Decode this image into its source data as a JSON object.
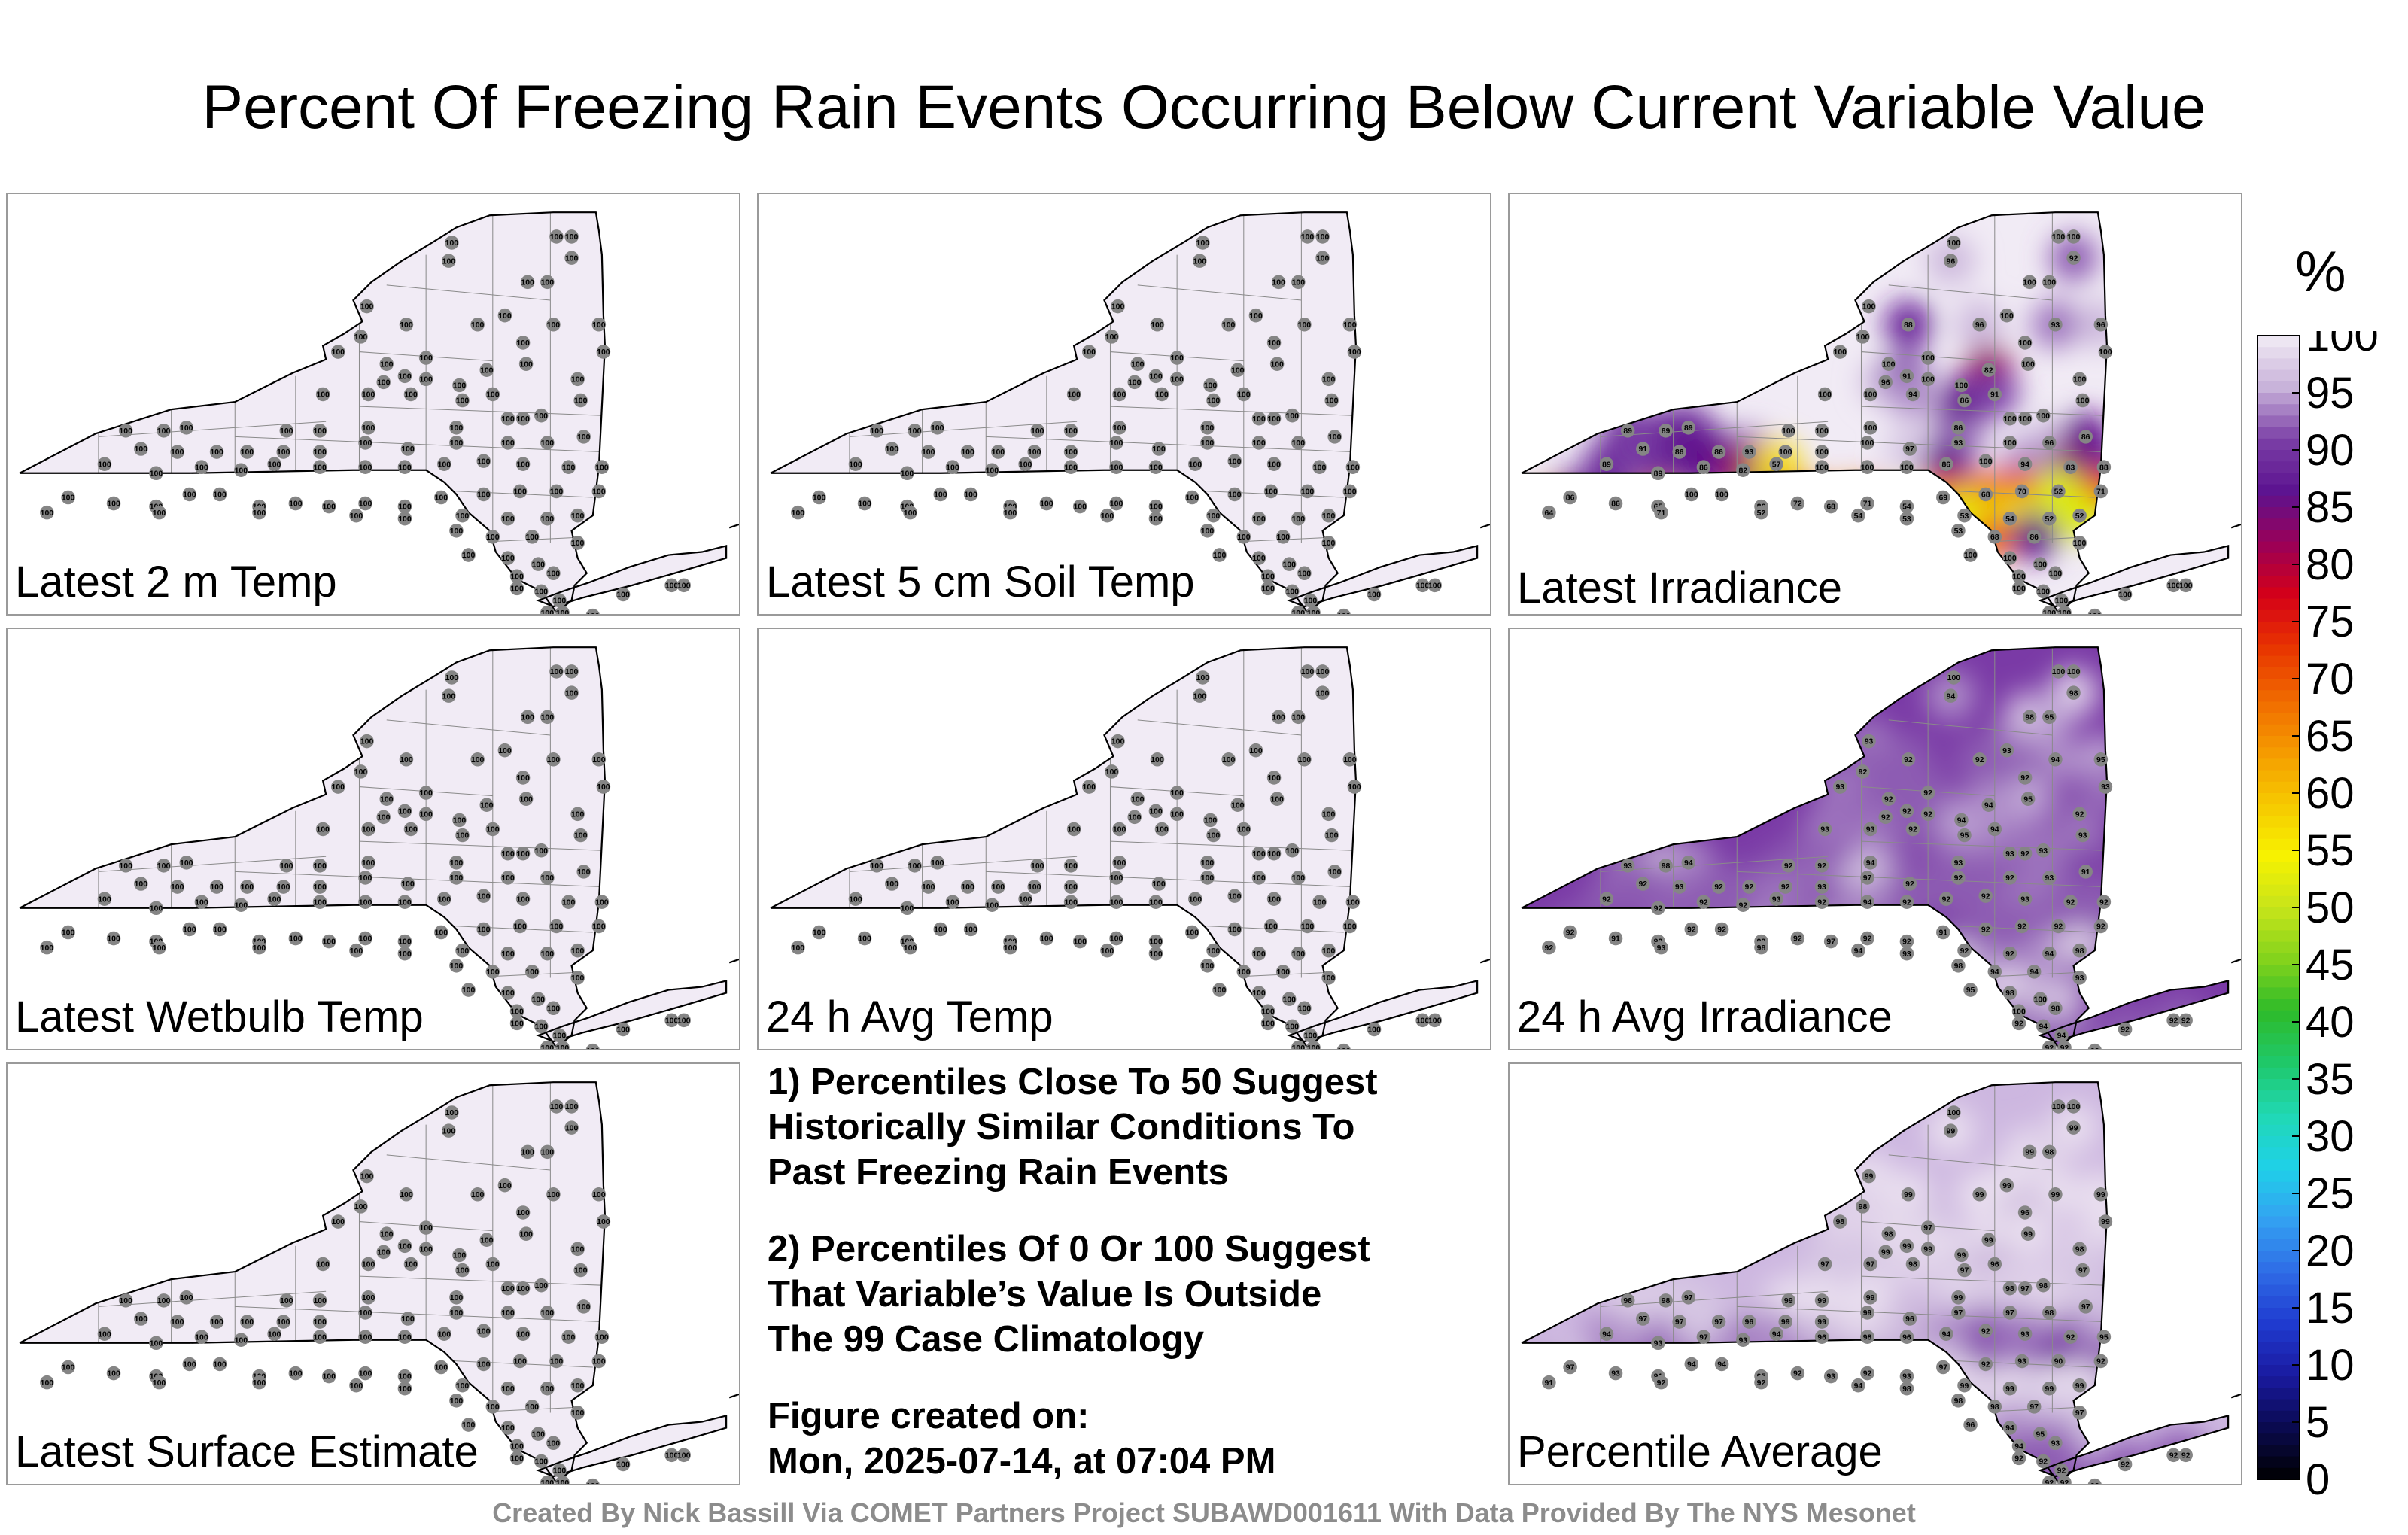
{
  "title": "Percent Of Freezing Rain Events Occurring Below Current Variable Value",
  "panels": [
    {
      "label": "Latest 2 m Temp",
      "fill": "uniform",
      "values": [
        100,
        100,
        100,
        100,
        100,
        100,
        100,
        100,
        100,
        100,
        100,
        100,
        100,
        100,
        100,
        100,
        100,
        100,
        100,
        100,
        100,
        100,
        100,
        100,
        100,
        100,
        100,
        100,
        100,
        100,
        100,
        100,
        100,
        100,
        100,
        100,
        100,
        100,
        100,
        100,
        100,
        100,
        100,
        100,
        100,
        100,
        100,
        100,
        100,
        100,
        100,
        100,
        100,
        100,
        100,
        100,
        100,
        100,
        100,
        100,
        100,
        100,
        100,
        100,
        100,
        100,
        100,
        100,
        100,
        100,
        100,
        100,
        100,
        100,
        100,
        100,
        100,
        100,
        100,
        100,
        100,
        100,
        100,
        100,
        100,
        100,
        100,
        100,
        100,
        100,
        100,
        100,
        100,
        100,
        100,
        100,
        100,
        100,
        100,
        100,
        100,
        100,
        100,
        100,
        100,
        100,
        100,
        100,
        100,
        100,
        100,
        100,
        100,
        100,
        100,
        100,
        100
      ]
    },
    {
      "label": "Latest 5 cm Soil Temp",
      "fill": "uniform",
      "values": [
        100,
        100,
        100,
        100,
        100,
        100,
        100,
        100,
        100,
        100,
        100,
        100,
        100,
        100,
        100,
        100,
        100,
        100,
        100,
        100,
        100,
        100,
        100,
        100,
        100,
        100,
        100,
        100,
        100,
        100,
        100,
        100,
        100,
        100,
        100,
        100,
        100,
        100,
        100,
        100,
        100,
        100,
        100,
        100,
        100,
        100,
        100,
        100,
        100,
        100,
        100,
        100,
        100,
        100,
        100,
        100,
        100,
        100,
        100,
        100,
        100,
        100,
        100,
        100,
        100,
        100,
        100,
        100,
        100,
        100,
        100,
        100,
        100,
        100,
        100,
        100,
        100,
        100,
        100,
        100,
        100,
        100,
        100,
        100,
        100,
        100,
        100,
        100,
        100,
        100,
        100,
        100,
        100,
        100,
        100,
        100,
        100,
        100,
        100,
        100,
        100,
        100,
        100,
        100,
        100,
        100,
        100,
        100,
        100,
        100,
        100,
        100,
        100,
        100,
        100,
        100,
        100
      ]
    },
    {
      "label": "Latest Irradiance",
      "fill": "irradiance",
      "values": [
        100,
        100,
        100,
        96,
        92,
        100,
        100,
        100,
        100,
        88,
        96,
        93,
        96,
        100,
        100,
        100,
        100,
        100,
        100,
        100,
        100,
        100,
        96,
        91,
        82,
        100,
        100,
        100,
        94,
        86,
        91,
        100,
        100,
        100,
        89,
        89,
        89,
        100,
        100,
        100,
        86,
        100,
        91,
        86,
        86,
        93,
        100,
        100,
        100,
        97,
        93,
        100,
        96,
        86,
        89,
        89,
        86,
        82,
        57,
        100,
        100,
        100,
        86,
        100,
        94,
        83,
        88,
        86,
        86,
        65,
        100,
        100,
        86,
        72,
        68,
        71,
        54,
        69,
        68,
        70,
        52,
        71,
        64,
        71,
        52,
        54,
        53,
        53,
        54,
        52,
        52,
        53,
        68,
        86,
        100,
        100,
        100,
        100,
        100,
        100,
        100,
        100,
        100,
        100,
        100,
        100,
        100,
        100,
        100,
        100,
        100,
        100,
        100,
        100,
        100,
        100,
        100
      ]
    },
    {
      "label": "Latest Wetbulb Temp",
      "fill": "uniform",
      "values": [
        100,
        100,
        100,
        100,
        100,
        100,
        100,
        100,
        100,
        100,
        100,
        100,
        100,
        100,
        100,
        100,
        100,
        100,
        100,
        100,
        100,
        100,
        100,
        100,
        100,
        100,
        100,
        100,
        100,
        100,
        100,
        100,
        100,
        100,
        100,
        100,
        100,
        100,
        100,
        100,
        100,
        100,
        100,
        100,
        100,
        100,
        100,
        100,
        100,
        100,
        100,
        100,
        100,
        100,
        100,
        100,
        100,
        100,
        100,
        100,
        100,
        100,
        100,
        100,
        100,
        100,
        100,
        100,
        100,
        100,
        100,
        100,
        100,
        100,
        100,
        100,
        100,
        100,
        100,
        100,
        100,
        100,
        100,
        100,
        100,
        100,
        100,
        100,
        100,
        100,
        100,
        100,
        100,
        100,
        100,
        100,
        100,
        100,
        100,
        100,
        100,
        100,
        100,
        100,
        100,
        100,
        100,
        100,
        100,
        100,
        100,
        100,
        100,
        100,
        100,
        100,
        100
      ]
    },
    {
      "label": "24 h Avg Temp",
      "fill": "uniform",
      "values": [
        100,
        100,
        100,
        100,
        100,
        100,
        100,
        100,
        100,
        100,
        100,
        100,
        100,
        100,
        100,
        100,
        100,
        100,
        100,
        100,
        100,
        100,
        100,
        100,
        100,
        100,
        100,
        100,
        100,
        100,
        100,
        100,
        100,
        100,
        100,
        100,
        100,
        100,
        100,
        100,
        100,
        100,
        100,
        100,
        100,
        100,
        100,
        100,
        100,
        100,
        100,
        100,
        100,
        100,
        100,
        100,
        100,
        100,
        100,
        100,
        100,
        100,
        100,
        100,
        100,
        100,
        100,
        100,
        100,
        100,
        100,
        100,
        100,
        100,
        100,
        100,
        100,
        100,
        100,
        100,
        100,
        100,
        100,
        100,
        100,
        100,
        100,
        100,
        100,
        100,
        100,
        100,
        100,
        100,
        100,
        100,
        100,
        100,
        100,
        100,
        100,
        100,
        100,
        100,
        100,
        100,
        100,
        100,
        100,
        100,
        100,
        100,
        100,
        100,
        100,
        100,
        100
      ]
    },
    {
      "label": "24 h Avg Irradiance",
      "fill": "purple",
      "values": [
        100,
        100,
        100,
        94,
        98,
        98,
        95,
        93,
        93,
        92,
        92,
        94,
        95,
        92,
        93,
        92,
        92,
        92,
        92,
        94,
        95,
        93,
        92,
        92,
        94,
        92,
        93,
        93,
        92,
        95,
        94,
        92,
        93,
        93,
        93,
        98,
        94,
        92,
        92,
        94,
        93,
        93,
        92,
        93,
        92,
        92,
        92,
        93,
        97,
        92,
        92,
        92,
        93,
        91,
        92,
        92,
        92,
        92,
        93,
        92,
        94,
        92,
        92,
        92,
        93,
        92,
        92,
        92,
        91,
        92,
        92,
        92,
        92,
        92,
        97,
        92,
        92,
        91,
        92,
        92,
        92,
        92,
        92,
        93,
        98,
        94,
        93,
        92,
        92,
        94,
        98,
        98,
        94,
        94,
        93,
        95,
        98,
        100,
        100,
        98,
        92,
        94,
        94,
        92,
        92,
        92,
        92,
        92,
        92,
        92,
        92,
        92,
        92,
        92,
        92,
        92,
        92
      ]
    },
    {
      "label": "Latest Surface Estimate",
      "fill": "uniform",
      "values": [
        100,
        100,
        100,
        100,
        100,
        100,
        100,
        100,
        100,
        100,
        100,
        100,
        100,
        100,
        100,
        100,
        100,
        100,
        100,
        100,
        100,
        100,
        100,
        100,
        100,
        100,
        100,
        100,
        100,
        100,
        100,
        100,
        100,
        100,
        100,
        100,
        100,
        100,
        100,
        100,
        100,
        100,
        100,
        100,
        100,
        100,
        100,
        100,
        100,
        100,
        100,
        100,
        100,
        100,
        100,
        100,
        100,
        100,
        100,
        100,
        100,
        100,
        100,
        100,
        100,
        100,
        100,
        100,
        100,
        100,
        100,
        100,
        100,
        100,
        100,
        100,
        100,
        100,
        100,
        100,
        100,
        100,
        100,
        100,
        100,
        100,
        100,
        100,
        100,
        100,
        100,
        100,
        100,
        100,
        100,
        100,
        100,
        100,
        100,
        100,
        100,
        100,
        100,
        100,
        100,
        100,
        100,
        100,
        100,
        100,
        100,
        100,
        100,
        100,
        100,
        100,
        100
      ]
    },
    {
      "label": "Percentile Average",
      "fill": "average",
      "values": [
        100,
        100,
        100,
        99,
        99,
        99,
        98,
        99,
        99,
        99,
        99,
        99,
        99,
        98,
        98,
        98,
        97,
        96,
        99,
        99,
        99,
        99,
        99,
        99,
        99,
        98,
        97,
        97,
        98,
        97,
        96,
        97,
        98,
        97,
        98,
        98,
        97,
        99,
        99,
        99,
        99,
        98,
        97,
        97,
        97,
        96,
        99,
        99,
        99,
        96,
        97,
        97,
        98,
        97,
        94,
        93,
        97,
        93,
        94,
        96,
        98,
        96,
        94,
        92,
        93,
        92,
        95,
        97,
        93,
        91,
        94,
        94,
        95,
        92,
        93,
        92,
        93,
        97,
        92,
        93,
        90,
        92,
        91,
        92,
        92,
        94,
        98,
        99,
        99,
        99,
        99,
        98,
        98,
        97,
        97,
        96,
        94,
        95,
        94,
        93,
        92,
        92,
        92,
        92,
        92,
        92,
        92,
        92,
        92,
        92,
        92,
        92,
        92,
        92,
        92,
        92,
        92
      ]
    }
  ],
  "notes": {
    "note1": [
      "1) Percentiles Close To 50 Suggest",
      "Historically Similar Conditions To",
      "Past Freezing Rain Events"
    ],
    "note2": [
      "2) Percentiles Of 0 Or 100 Suggest",
      "That Variable’s Value Is Outside",
      "The 99 Case Climatology"
    ],
    "created": [
      "Figure created on:",
      "Mon, 2025-07-14, at 07:04 PM"
    ]
  },
  "colorbar": {
    "unit": "%",
    "ticks": [
      "0",
      "5",
      "10",
      "15",
      "20",
      "25",
      "30",
      "35",
      "40",
      "45",
      "50",
      "55",
      "60",
      "65",
      "70",
      "75",
      "80",
      "85",
      "90",
      "95",
      "100"
    ],
    "colors": [
      "#000000",
      "#0a0a50",
      "#1a1aa0",
      "#1f3bd0",
      "#2f6ce6",
      "#33a2f2",
      "#1fd1e8",
      "#20d8b4",
      "#1fc86a",
      "#2dbb2a",
      "#83d31c",
      "#c8e51a",
      "#f7f200",
      "#f6c800",
      "#f59a00",
      "#f06a00",
      "#e83400",
      "#d50018",
      "#9a0058",
      "#5c1390",
      "#7b3fa6",
      "#c8b2da",
      "#f2ecf5"
    ]
  },
  "credit": "Created By Nick Bassill Via COMET Partners Project SUBAWD001611 With Data Provided By The NYS Mesonet"
}
